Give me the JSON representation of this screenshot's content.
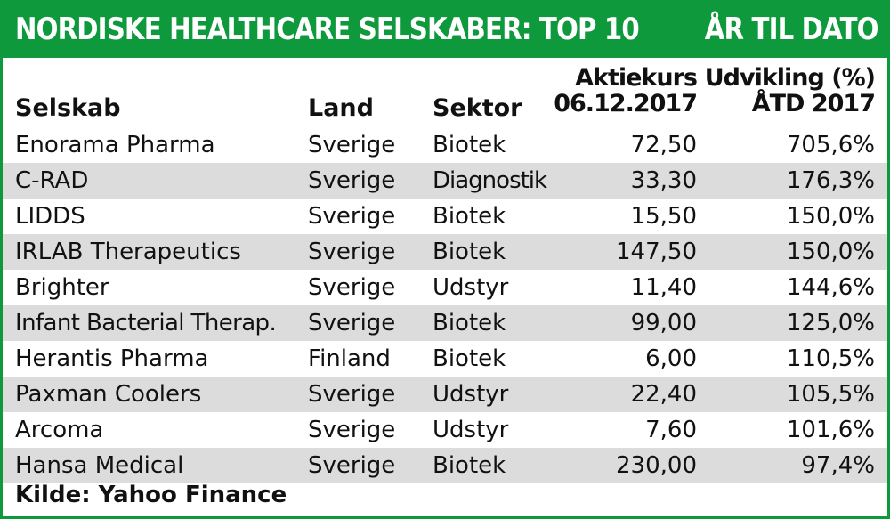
{
  "title": {
    "left": "NORDISKE HEALTHCARE SELSKABER: TOP 10",
    "right": "ÅR TIL DATO"
  },
  "colors": {
    "accent": "#0e9a3c",
    "row_shade": "#dcdcdc"
  },
  "chart_data": {
    "type": "table",
    "headers": {
      "company": "Selskab",
      "country": "Land",
      "sector": "Sektor",
      "price_line1": "Aktiekurs",
      "price_line2": "06.12.2017",
      "change_line1": "Udvikling (%)",
      "change_line2": "ÅTD 2017"
    },
    "rows": [
      {
        "company": "Enorama Pharma",
        "country": "Sverige",
        "sector": "Biotek",
        "price": "72,50",
        "change": "705,6%"
      },
      {
        "company": "C-RAD",
        "country": "Sverige",
        "sector": "Diagnostik",
        "price": "33,30",
        "change": "176,3%"
      },
      {
        "company": "LIDDS",
        "country": "Sverige",
        "sector": "Biotek",
        "price": "15,50",
        "change": "150,0%"
      },
      {
        "company": "IRLAB Therapeutics",
        "country": "Sverige",
        "sector": "Biotek",
        "price": "147,50",
        "change": "150,0%"
      },
      {
        "company": "Brighter",
        "country": "Sverige",
        "sector": "Udstyr",
        "price": "11,40",
        "change": "144,6%"
      },
      {
        "company": "Infant Bacterial Therap.",
        "country": "Sverige",
        "sector": "Biotek",
        "price": "99,00",
        "change": "125,0%"
      },
      {
        "company": "Herantis Pharma",
        "country": "Finland",
        "sector": "Biotek",
        "price": "6,00",
        "change": "110,5%"
      },
      {
        "company": "Paxman Coolers",
        "country": "Sverige",
        "sector": "Udstyr",
        "price": "22,40",
        "change": "105,5%"
      },
      {
        "company": "Arcoma",
        "country": "Sverige",
        "sector": "Udstyr",
        "price": "7,60",
        "change": "101,6%"
      },
      {
        "company": "Hansa Medical",
        "country": "Sverige",
        "sector": "Biotek",
        "price": "230,00",
        "change": "97,4%"
      }
    ],
    "source": "Kilde: Yahoo Finance"
  }
}
